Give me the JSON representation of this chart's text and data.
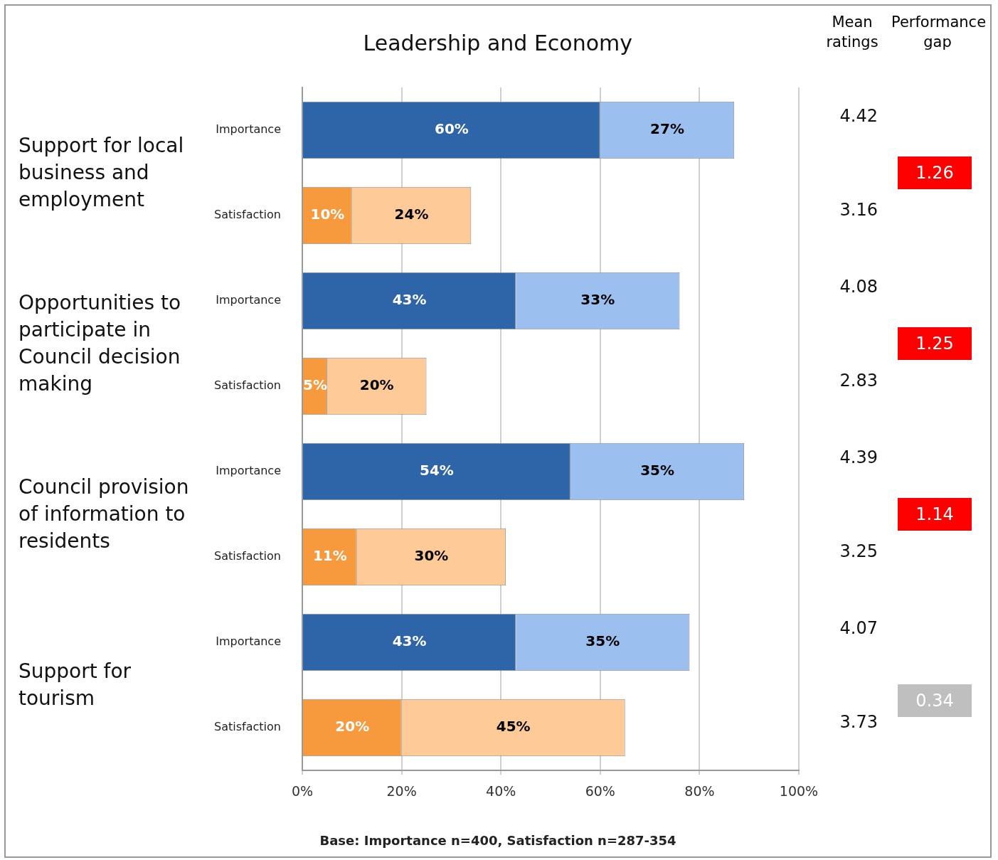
{
  "chart_data": {
    "type": "bar",
    "orientation": "horizontal",
    "stacked": true,
    "title": "Leadership and Economy",
    "categories": [
      "Importance",
      "Satisfaction",
      "Importance",
      "Satisfaction",
      "Importance",
      "Satisfaction",
      "Importance",
      "Satisfaction"
    ],
    "series": [
      {
        "values": [
          60,
          10,
          43,
          5,
          54,
          11,
          43,
          20
        ],
        "colors": [
          "#2e64a8",
          "#f79a3e",
          "#2e64a8",
          "#f79a3e",
          "#2e64a8",
          "#f79a3e",
          "#2e64a8",
          "#f79a3e"
        ],
        "value_labels": [
          "60%",
          "10%",
          "43%",
          "5%",
          "54%",
          "11%",
          "43%",
          "20%"
        ]
      },
      {
        "values": [
          27,
          24,
          33,
          20,
          35,
          30,
          35,
          45
        ],
        "colors": [
          "#9bbfee",
          "#fdca98",
          "#9bbfee",
          "#fdca98",
          "#9bbfee",
          "#fdca98",
          "#9bbfee",
          "#fdca98"
        ],
        "value_labels": [
          "27%",
          "24%",
          "33%",
          "20%",
          "35%",
          "30%",
          "35%",
          "45%"
        ]
      }
    ],
    "xlim": [
      0,
      100
    ],
    "xticks": [
      {
        "value": 0,
        "label": "0%"
      },
      {
        "value": 20,
        "label": "20%"
      },
      {
        "value": 40,
        "label": "40%"
      },
      {
        "value": 60,
        "label": "60%"
      },
      {
        "value": 80,
        "label": "80%"
      },
      {
        "value": 100,
        "label": "100%"
      }
    ],
    "grid": "x",
    "legend": false,
    "annotations": [
      "Mean ratings",
      "Performance gap",
      "4.42",
      "3.16",
      "4.08",
      "2.83",
      "4.39",
      "3.25",
      "4.07",
      "3.73",
      "1.26",
      "1.25",
      "1.14",
      "0.34",
      "Support for local business and employment",
      "Opportunities to participate in Council decision making",
      "Council provision of information to residents",
      "Support for tourism",
      "Base: Importance n=400, Satisfaction n=287-354"
    ]
  }
}
